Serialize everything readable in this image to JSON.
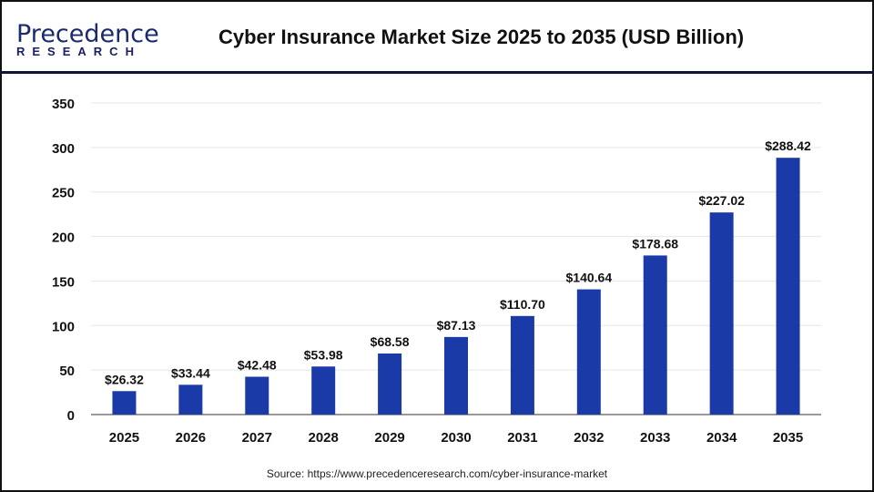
{
  "logo": {
    "line1": "Precedence",
    "line2": "RESEARCH"
  },
  "source": "Source: https://www.precedenceresearch.com/cyber-insurance-market",
  "colors": {
    "bar": "#1a3aa8",
    "grid": "#e6e6e6"
  },
  "chart_data": {
    "type": "bar",
    "title": "Cyber Insurance Market Size 2025 to 2035 (USD Billion)",
    "xlabel": "",
    "ylabel": "",
    "categories": [
      "2025",
      "2026",
      "2027",
      "2028",
      "2029",
      "2030",
      "2031",
      "2032",
      "2033",
      "2034",
      "2035"
    ],
    "values": [
      26.32,
      33.44,
      42.48,
      53.98,
      68.58,
      87.13,
      110.7,
      140.64,
      178.68,
      227.02,
      288.42
    ],
    "data_labels": [
      "$26.32",
      "$33.44",
      "$42.48",
      "$53.98",
      "$68.58",
      "$87.13",
      "$110.70",
      "$140.64",
      "$178.68",
      "$227.02",
      "$288.42"
    ],
    "ylim": [
      0,
      350
    ],
    "yticks": [
      0,
      50,
      100,
      150,
      200,
      250,
      300,
      350
    ],
    "grid": true
  }
}
